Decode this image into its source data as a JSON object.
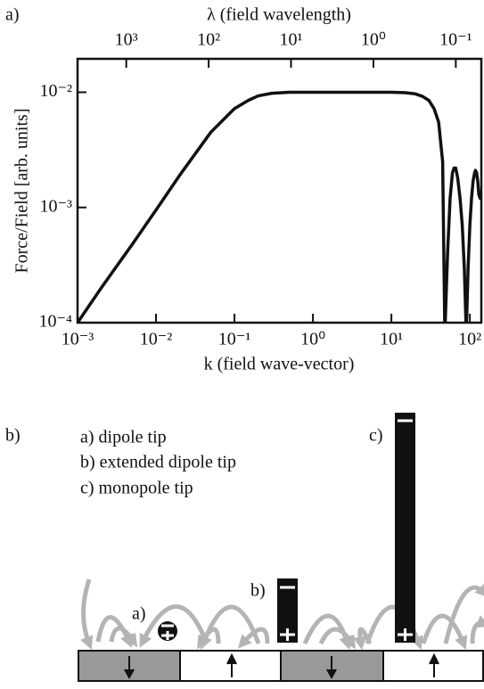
{
  "chart_data": {
    "type": "line",
    "panel_label": "a)",
    "title": "λ (field wavelength)",
    "xlabel": "k (field wave-vector)",
    "ylabel": "Force/Field [arb. units]",
    "xscale": "log",
    "yscale": "log",
    "x2scale": "log",
    "xlim": [
      0.001,
      140
    ],
    "ylim": [
      0.0001,
      0.0195
    ],
    "x2lim": [
      3900,
      0.049
    ],
    "xticks": [
      {
        "value": 0.001,
        "label": "10⁻³"
      },
      {
        "value": 0.01,
        "label": "10⁻²"
      },
      {
        "value": 0.1,
        "label": "10⁻¹"
      },
      {
        "value": 1,
        "label": "10⁰"
      },
      {
        "value": 10,
        "label": "10¹"
      },
      {
        "value": 100,
        "label": "10²"
      }
    ],
    "yticks": [
      {
        "value": 0.0001,
        "label": "10⁻⁴"
      },
      {
        "value": 0.001,
        "label": "10⁻³"
      },
      {
        "value": 0.01,
        "label": "10⁻²"
      }
    ],
    "x2ticks": [
      {
        "value": 1000,
        "label": "10³"
      },
      {
        "value": 100,
        "label": "10²"
      },
      {
        "value": 10,
        "label": "10¹"
      },
      {
        "value": 1,
        "label": "10⁰"
      },
      {
        "value": 0.1,
        "label": "10⁻¹"
      }
    ],
    "color": "#111111",
    "x": [
      0.001,
      0.002,
      0.005,
      0.01,
      0.02,
      0.05,
      0.08,
      0.1,
      0.15,
      0.2,
      0.3,
      0.5,
      1,
      2,
      5,
      10,
      15,
      20,
      25,
      30,
      35,
      40,
      45,
      48,
      52,
      56,
      60,
      63,
      66,
      70,
      75,
      80,
      85,
      90,
      95,
      100,
      105,
      110,
      115,
      118,
      122,
      126,
      130,
      135,
      140
    ],
    "values": [
      0.0001,
      0.0002,
      0.00048,
      0.00095,
      0.0019,
      0.0045,
      0.0062,
      0.0072,
      0.0085,
      0.0093,
      0.0098,
      0.01,
      0.01,
      0.01,
      0.01,
      0.01,
      0.0099,
      0.0097,
      0.0092,
      0.0085,
      0.0072,
      0.0055,
      0.0025,
      8e-05,
      0.0004,
      0.0012,
      0.002,
      0.0022,
      0.0022,
      0.0018,
      0.0012,
      0.0007,
      0.0003,
      8e-05,
      0.0003,
      0.0007,
      0.0012,
      0.0017,
      0.002,
      0.0021,
      0.002,
      0.0017,
      0.0013,
      0.0012,
      0.0014
    ]
  },
  "diagram": {
    "panel_label": "b)",
    "legend": [
      "a) dipole tip",
      "b) extended dipole tip",
      "c) monopole tip"
    ],
    "tip_labels": [
      "a)",
      "b)",
      "c)"
    ]
  }
}
